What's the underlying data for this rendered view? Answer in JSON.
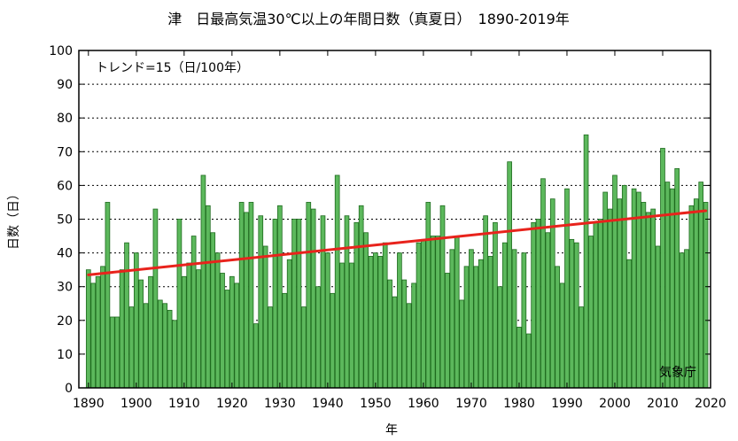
{
  "chart_data": {
    "type": "bar",
    "title": "津　日最高気温30℃以上の年間日数（真夏日）　1890-2019年",
    "xlabel": "年",
    "ylabel": "日数（日）",
    "ylim": [
      0,
      100
    ],
    "yticks": [
      0,
      10,
      20,
      30,
      40,
      50,
      60,
      70,
      80,
      90,
      100
    ],
    "xlim": [
      1888,
      2020
    ],
    "xticks": [
      1890,
      1900,
      1910,
      1920,
      1930,
      1940,
      1950,
      1960,
      1970,
      1980,
      1990,
      2000,
      2010,
      2020
    ],
    "trend_label": "トレンド=15（日/100年）",
    "source_label": "気象庁",
    "trend_line": {
      "x": [
        1890,
        2019
      ],
      "y": [
        33.5,
        52.5
      ]
    },
    "colors": {
      "bar_fill": "#5cb85c",
      "bar_stroke": "#1f6b1f",
      "trend": "#e8231c"
    },
    "years": [
      1890,
      1891,
      1892,
      1893,
      1894,
      1895,
      1896,
      1897,
      1898,
      1899,
      1900,
      1901,
      1902,
      1903,
      1904,
      1905,
      1906,
      1907,
      1908,
      1909,
      1910,
      1911,
      1912,
      1913,
      1914,
      1915,
      1916,
      1917,
      1918,
      1919,
      1920,
      1921,
      1922,
      1923,
      1924,
      1925,
      1926,
      1927,
      1928,
      1929,
      1930,
      1931,
      1932,
      1933,
      1934,
      1935,
      1936,
      1937,
      1938,
      1939,
      1940,
      1941,
      1942,
      1943,
      1944,
      1945,
      1946,
      1947,
      1948,
      1949,
      1950,
      1951,
      1952,
      1953,
      1954,
      1955,
      1956,
      1957,
      1958,
      1959,
      1960,
      1961,
      1962,
      1963,
      1964,
      1965,
      1966,
      1967,
      1968,
      1969,
      1970,
      1971,
      1972,
      1973,
      1974,
      1975,
      1976,
      1977,
      1978,
      1979,
      1980,
      1981,
      1982,
      1983,
      1984,
      1985,
      1986,
      1987,
      1988,
      1989,
      1990,
      1991,
      1992,
      1993,
      1994,
      1995,
      1996,
      1997,
      1998,
      1999,
      2000,
      2001,
      2002,
      2003,
      2004,
      2005,
      2006,
      2007,
      2008,
      2009,
      2010,
      2011,
      2012,
      2013,
      2014,
      2015,
      2016,
      2017,
      2018,
      2019
    ],
    "values": [
      35,
      31,
      33,
      36,
      55,
      21,
      21,
      35,
      43,
      24,
      40,
      32,
      25,
      33,
      53,
      26,
      25,
      23,
      20,
      50,
      33,
      37,
      45,
      35,
      63,
      54,
      46,
      40,
      34,
      29,
      33,
      31,
      55,
      52,
      55,
      19,
      51,
      42,
      24,
      50,
      54,
      28,
      38,
      50,
      50,
      24,
      55,
      53,
      30,
      51,
      40,
      28,
      63,
      37,
      51,
      37,
      49,
      54,
      46,
      39,
      40,
      39,
      43,
      32,
      27,
      40,
      32,
      25,
      31,
      43,
      44,
      55,
      45,
      45,
      54,
      34,
      41,
      45,
      26,
      36,
      41,
      36,
      38,
      51,
      39,
      49,
      30,
      43,
      67,
      41,
      18,
      40,
      16,
      49,
      50,
      62,
      46,
      56,
      36,
      31,
      59,
      44,
      43,
      24,
      75,
      45,
      49,
      50,
      58,
      53,
      63,
      56,
      60,
      38,
      59,
      58,
      55,
      52,
      53,
      42,
      71,
      61,
      59,
      65,
      40,
      41,
      54,
      56,
      61,
      55
    ]
  }
}
